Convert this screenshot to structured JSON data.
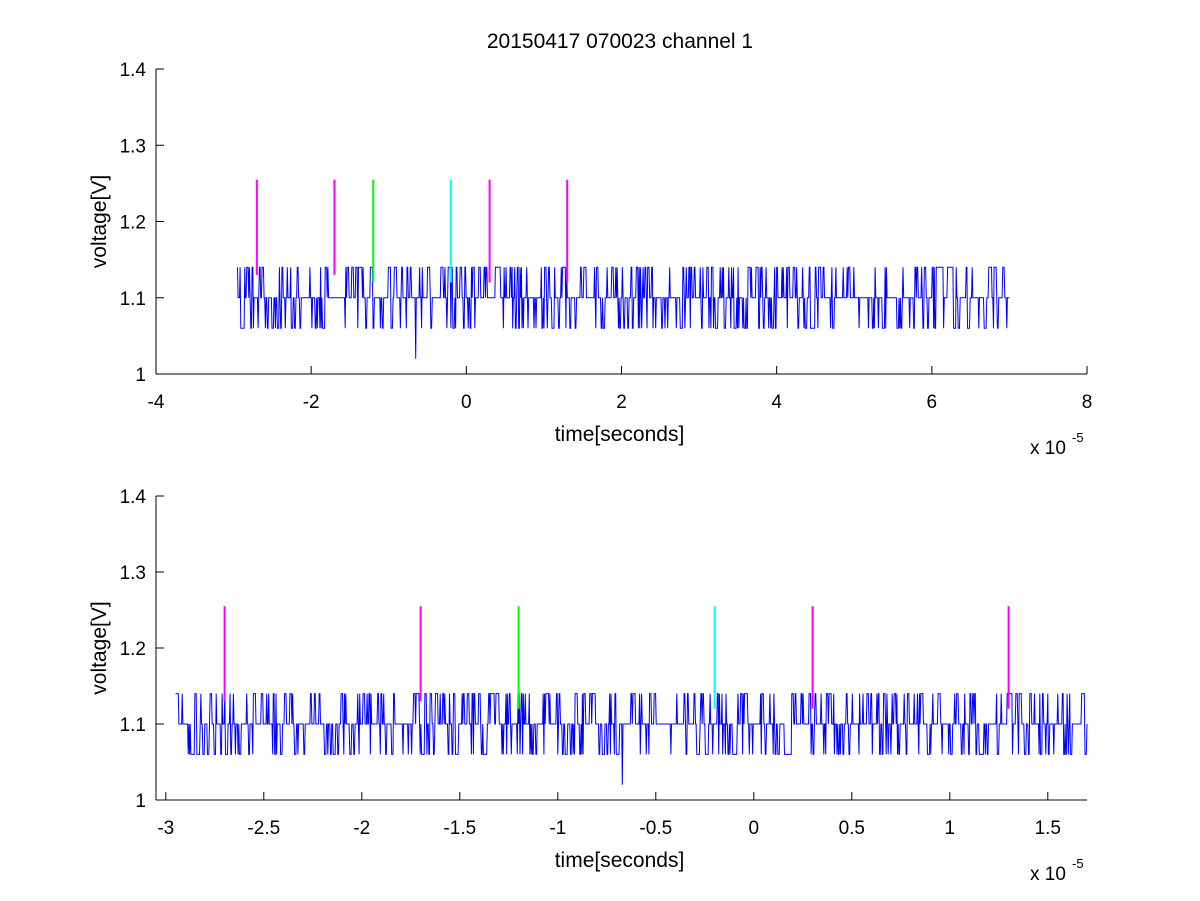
{
  "title": "20150417 070023 channel 1",
  "colors": {
    "trace": "#0000ff",
    "magenta": "#ff00ff",
    "green": "#00ff00",
    "cyan": "#00ffff"
  },
  "chart_data": [
    {
      "type": "line",
      "title": "20150417 070023 channel 1",
      "xlabel": "time[seconds]",
      "ylabel": "voltage[V]",
      "x_multiplier": "x 10",
      "x_multiplier_exp": "-5",
      "xlim": [
        -4,
        8
      ],
      "ylim": [
        1,
        1.4
      ],
      "xticks": [
        "-4",
        "-2",
        "0",
        "2",
        "4",
        "6",
        "8"
      ],
      "yticks": [
        "1",
        "1.1",
        "1.2",
        "1.3",
        "1.4"
      ],
      "grid": false,
      "series": [
        {
          "x_range": [
            -2.95,
            7.0
          ],
          "baseline": 1.1,
          "levels": [
            1.06,
            1.1,
            1.14
          ],
          "min_spike": {
            "x": -0.65,
            "y": 1.02
          }
        }
      ],
      "markers": [
        {
          "x": -2.7,
          "y_from": 1.13,
          "y_to": 1.255,
          "color": "magenta"
        },
        {
          "x": -1.7,
          "y_from": 1.13,
          "y_to": 1.255,
          "color": "magenta"
        },
        {
          "x": -1.2,
          "y_from": 1.12,
          "y_to": 1.255,
          "color": "green"
        },
        {
          "x": -0.2,
          "y_from": 1.12,
          "y_to": 1.255,
          "color": "cyan"
        },
        {
          "x": 0.3,
          "y_from": 1.12,
          "y_to": 1.255,
          "color": "magenta"
        },
        {
          "x": 1.3,
          "y_from": 1.12,
          "y_to": 1.255,
          "color": "magenta"
        }
      ]
    },
    {
      "type": "line",
      "title": "",
      "xlabel": "time[seconds]",
      "ylabel": "voltage[V]",
      "x_multiplier": "x 10",
      "x_multiplier_exp": "-5",
      "xlim": [
        -3.05,
        1.7
      ],
      "ylim": [
        1,
        1.4
      ],
      "xticks": [
        "-3",
        "-2.5",
        "-2",
        "-1.5",
        "-1",
        "-0.5",
        "0",
        "0.5",
        "1",
        "1.5"
      ],
      "yticks": [
        "1",
        "1.1",
        "1.2",
        "1.3",
        "1.4"
      ],
      "grid": false,
      "series": [
        {
          "x_range": [
            -2.95,
            1.7
          ],
          "baseline": 1.1,
          "levels": [
            1.06,
            1.1,
            1.14
          ],
          "min_spike": {
            "x": -0.67,
            "y": 1.02
          }
        }
      ],
      "markers": [
        {
          "x": -2.7,
          "y_from": 1.13,
          "y_to": 1.255,
          "color": "magenta"
        },
        {
          "x": -1.7,
          "y_from": 1.13,
          "y_to": 1.255,
          "color": "magenta"
        },
        {
          "x": -1.2,
          "y_from": 1.12,
          "y_to": 1.255,
          "color": "green"
        },
        {
          "x": -0.2,
          "y_from": 1.12,
          "y_to": 1.255,
          "color": "cyan"
        },
        {
          "x": 0.3,
          "y_from": 1.12,
          "y_to": 1.255,
          "color": "magenta"
        },
        {
          "x": 1.3,
          "y_from": 1.12,
          "y_to": 1.255,
          "color": "magenta"
        }
      ]
    }
  ]
}
